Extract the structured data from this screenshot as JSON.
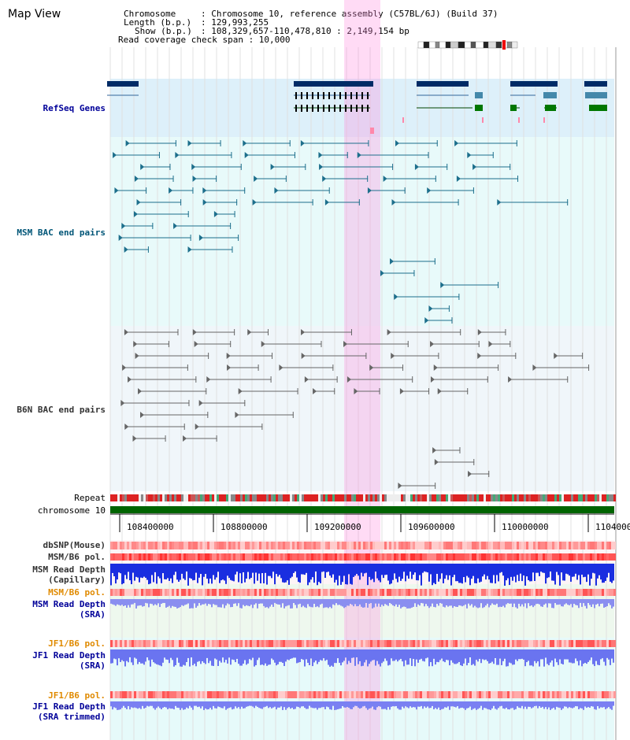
{
  "title": "Map View",
  "info": {
    "chromosome_key": "Chromosome",
    "chromosome_val": ": Chromosome 10, reference assembly (C57BL/6J) (Build 37)",
    "length_key": "Length (b.p.)",
    "length_val": ": 129,993,255",
    "show_key": "Show (b.p.)",
    "show_val": ": 108,329,657-110,478,810 : 2,149,154 bp",
    "span_line": "Read coverage check span : 10,000"
  },
  "tracks": {
    "refseq": "RefSeq Genes",
    "msm_bac": "MSM BAC end pairs",
    "b6n_bac": "B6N BAC end pairs",
    "repeat": "Repeat",
    "chromosome": "chromosome 10",
    "dbsnp": "dbSNP(Mouse)",
    "msm_b6_pol_1": "MSM/B6 pol.",
    "msm_read_depth_cap_1": "MSM Read Depth",
    "msm_read_depth_cap_2": "(Capillary)",
    "msm_b6_pol_2": "MSM/B6 pol.",
    "msm_read_depth_sra_1": "MSM Read Depth",
    "msm_read_depth_sra_2": "(SRA)",
    "jf1_b6_pol_1": "JF1/B6 pol.",
    "jf1_read_depth_sra_1": "JF1 Read Depth",
    "jf1_read_depth_sra_2": "(SRA)",
    "jf1_b6_pol_2": "JF1/B6 pol.",
    "jf1_read_depth_tr_1": "JF1 Read Depth",
    "jf1_read_depth_tr_2": "(SRA trimmed)"
  },
  "axis_ticks": [
    "108400000",
    "108800000",
    "109200000",
    "109600000",
    "110000000",
    "1104000"
  ],
  "colors": {
    "refseq_label": "#000099",
    "msm_label": "#005577",
    "b6n_label": "#333333",
    "orange_label": "#e08a00",
    "blue_label": "#000099",
    "highlight": "#ff88dd",
    "refseq_bg": "#ddf0fa",
    "msm_bg": "#e8fafa",
    "b6n_bg": "#f0f6fa",
    "chromosome_bar": "#006400"
  }
}
